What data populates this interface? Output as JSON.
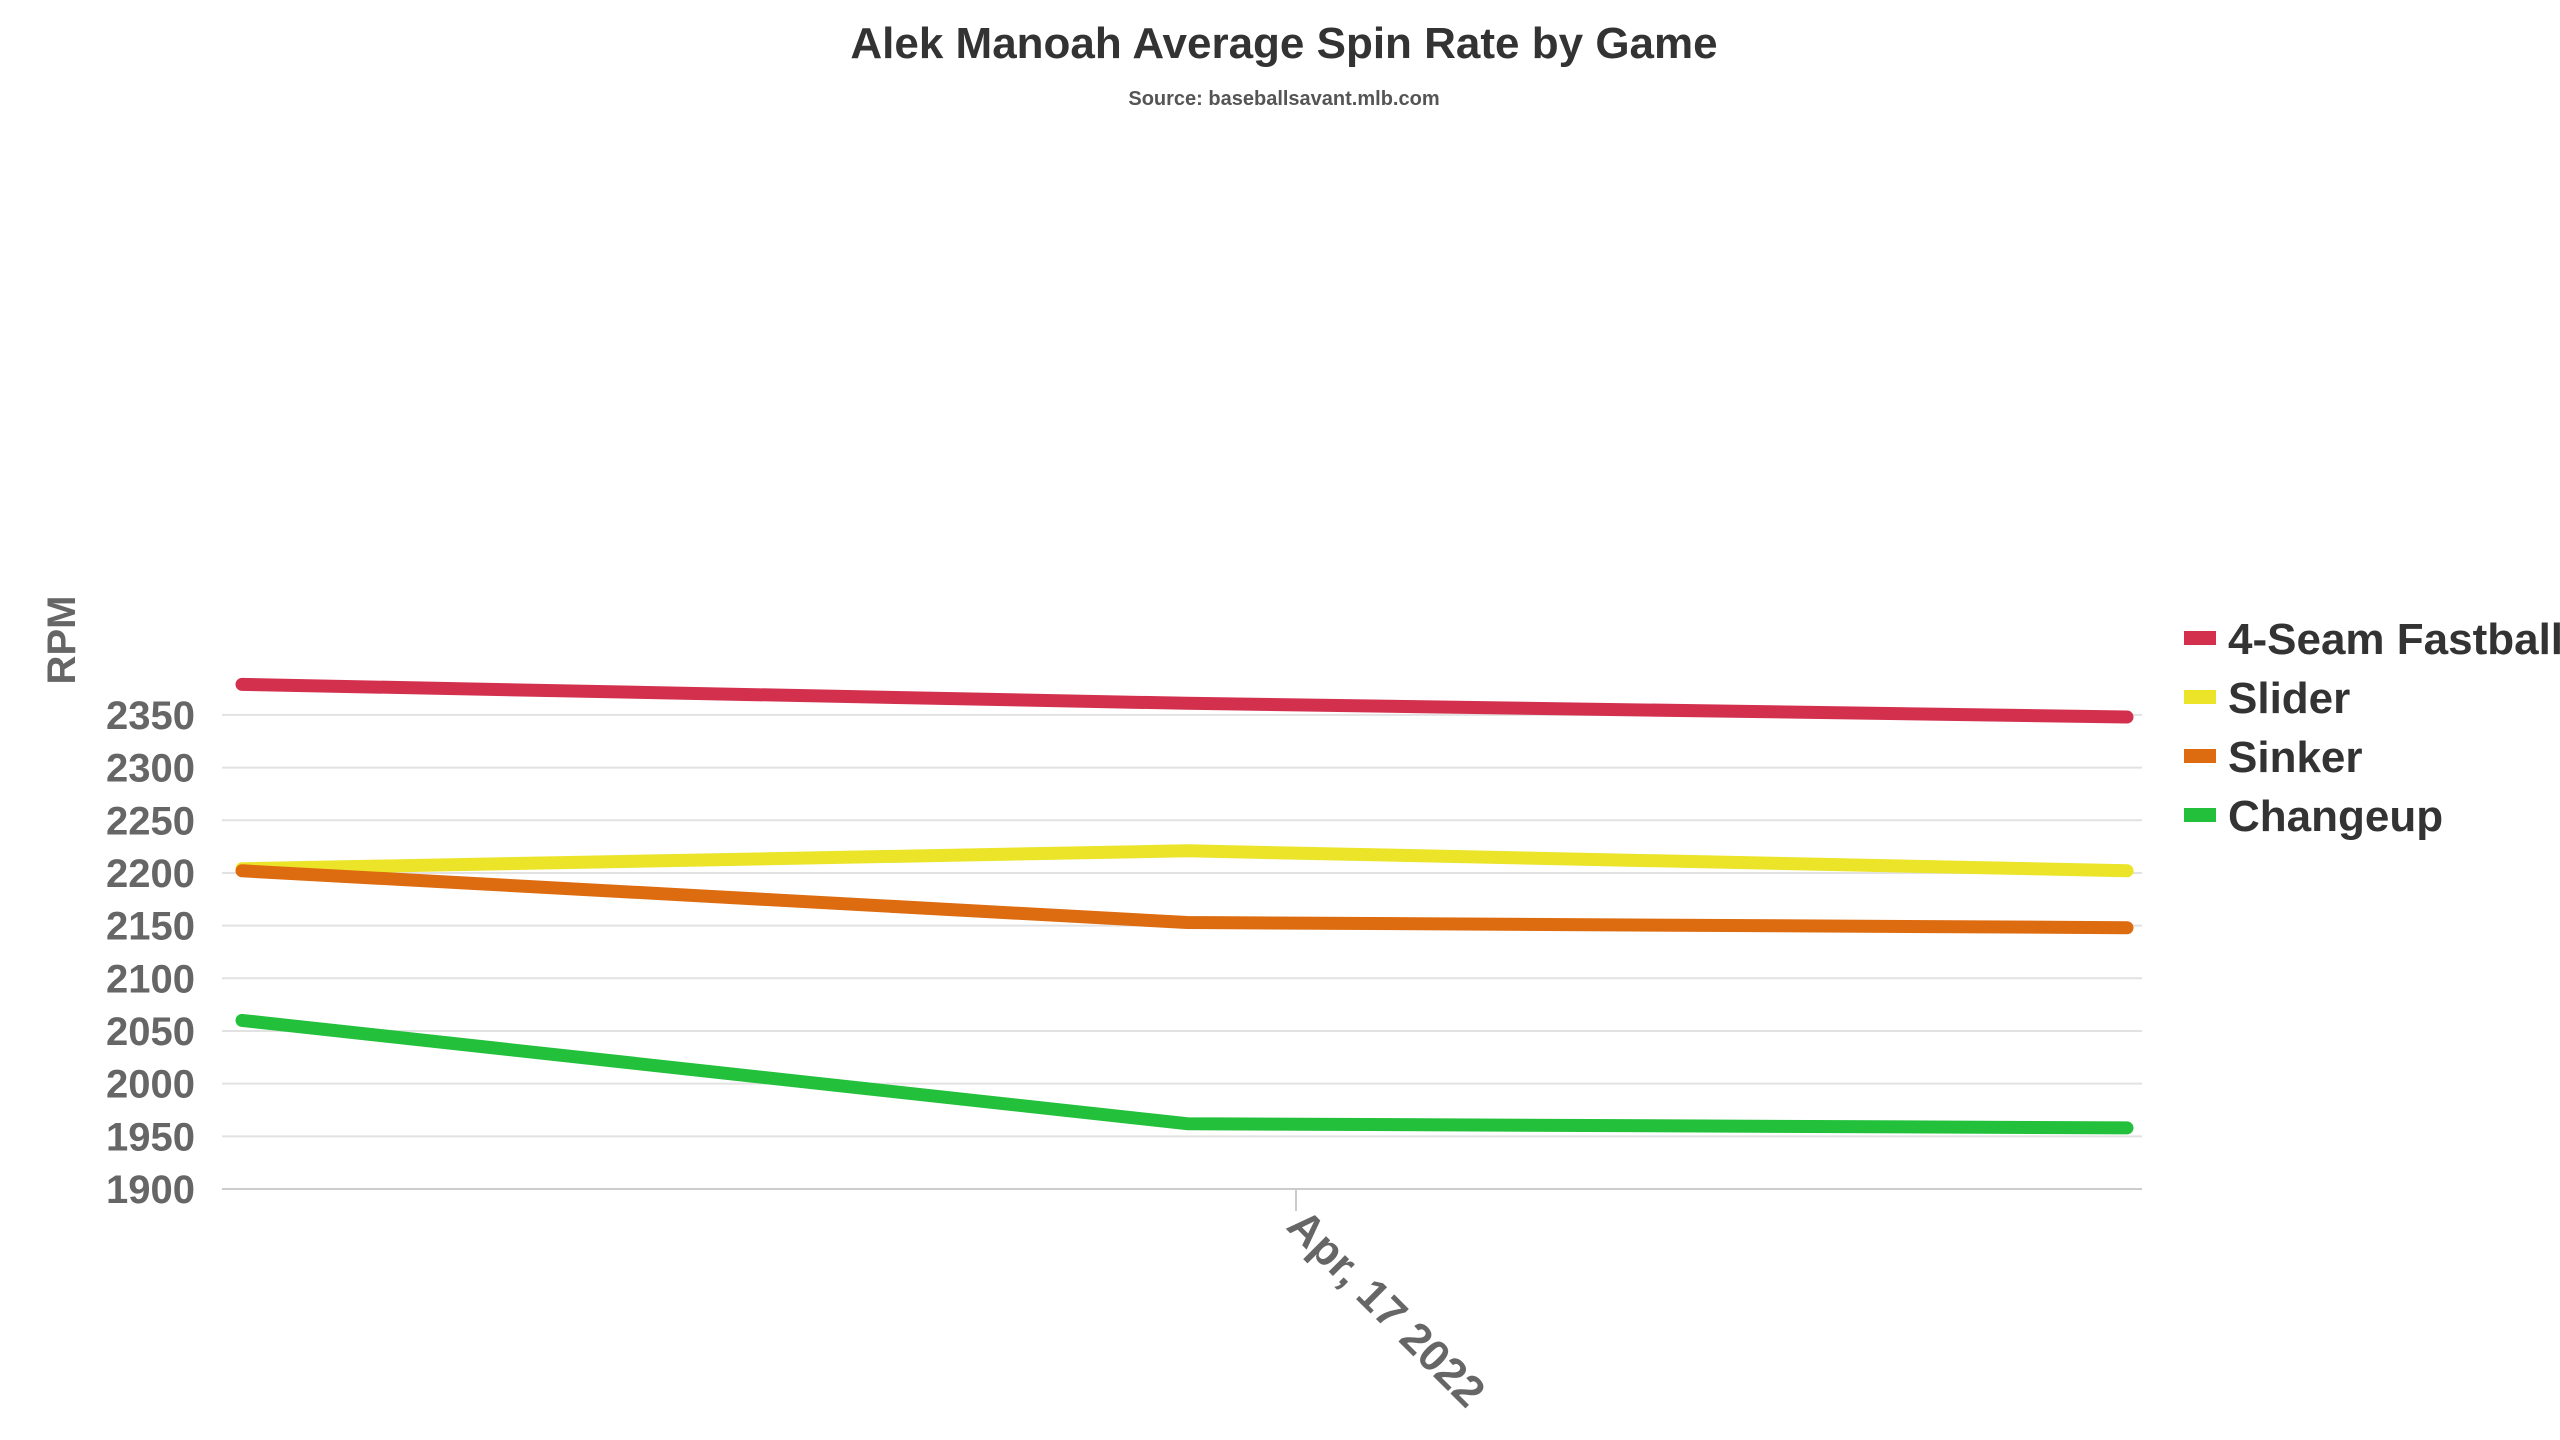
{
  "chart_data": {
    "type": "line",
    "title": "Alek Manoah Average Spin Rate by Game",
    "subtitle": "Source: baseballsavant.mlb.com",
    "xlabel": "",
    "ylabel": "RPM",
    "x_tick_labels": [
      "Apr, 17 2022"
    ],
    "ylim": [
      1900,
      2375
    ],
    "yticks": [
      1900,
      1950,
      2000,
      2050,
      2100,
      2150,
      2200,
      2250,
      2300,
      2350
    ],
    "grid": true,
    "legend_position": "right",
    "series": [
      {
        "name": "4-Seam Fastball",
        "color": "#d3304e",
        "values": [
          2379,
          2361,
          2348
        ]
      },
      {
        "name": "Slider",
        "color": "#ebe428",
        "values": [
          2204,
          2221,
          2202
        ]
      },
      {
        "name": "Sinker",
        "color": "#dd6b0f",
        "values": [
          2202,
          2153,
          2148
        ]
      },
      {
        "name": "Changeup",
        "color": "#22c03b",
        "values": [
          2060,
          1962,
          1958
        ]
      }
    ]
  }
}
